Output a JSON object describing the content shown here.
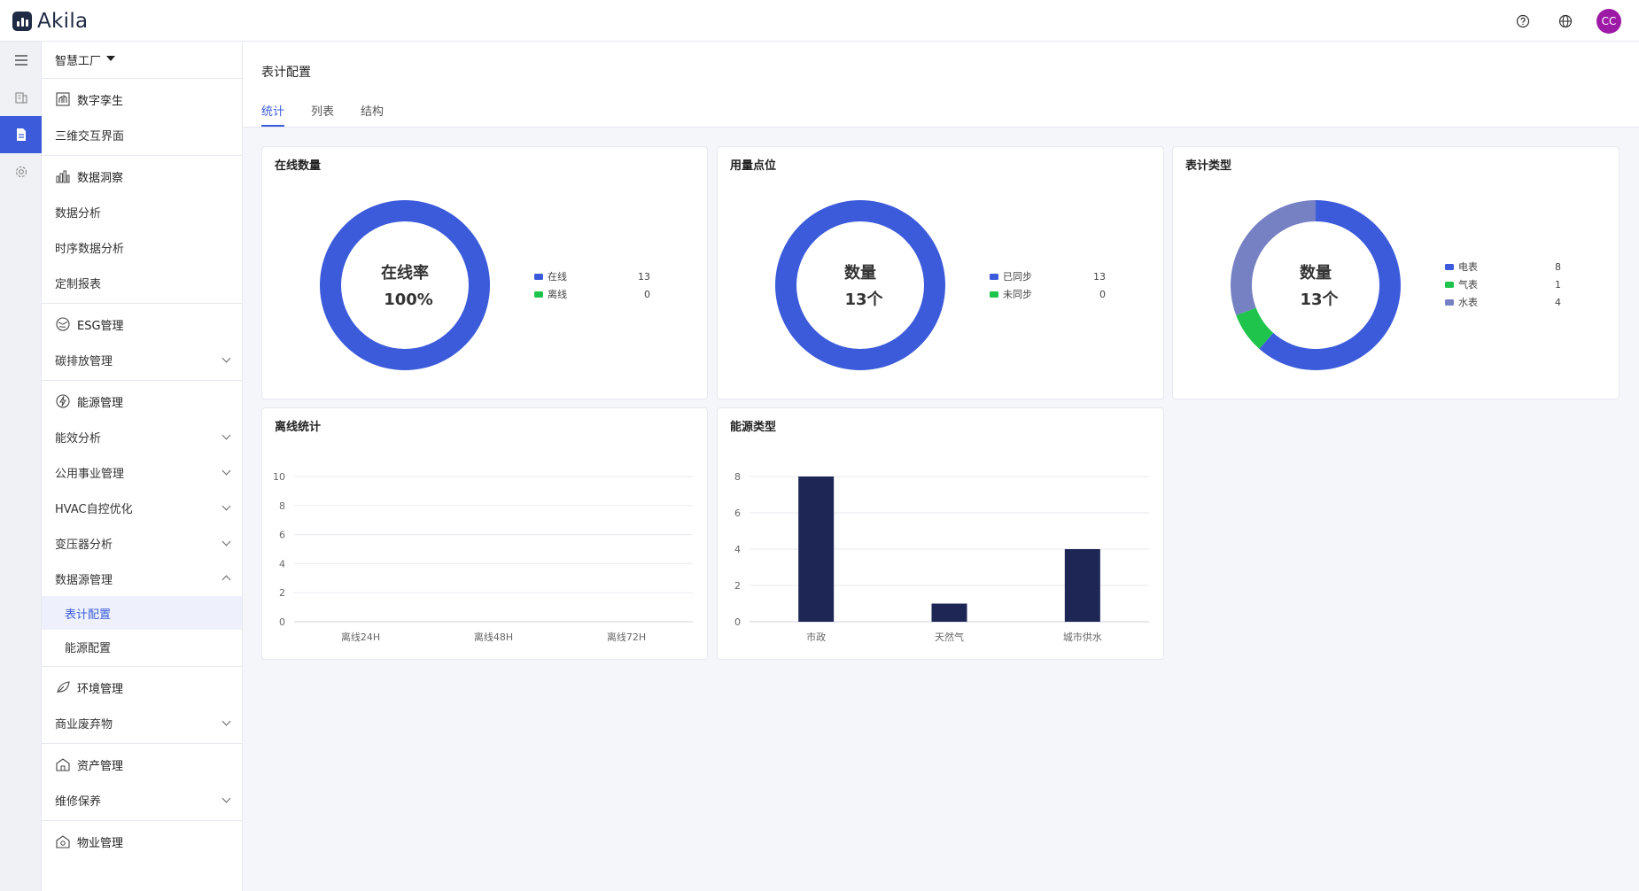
{
  "app": {
    "name": "Akila"
  },
  "header": {
    "avatar_initials": "CC",
    "icons": [
      "help-icon",
      "globe-icon"
    ]
  },
  "sidebar": {
    "site": "智慧工厂",
    "groups": [
      {
        "icon": "digital-twin-icon",
        "title": "数字孪生",
        "items": [
          {
            "label": "三维交互界面",
            "expandable": false
          }
        ]
      },
      {
        "icon": "bar-chart-icon",
        "title": "数据洞察",
        "items": [
          {
            "label": "数据分析",
            "expandable": false
          },
          {
            "label": "时序数据分析",
            "expandable": false
          },
          {
            "label": "定制报表",
            "expandable": false
          }
        ]
      },
      {
        "icon": "esg-icon",
        "title": "ESG管理",
        "items": [
          {
            "label": "碳排放管理",
            "expandable": true
          }
        ]
      },
      {
        "icon": "energy-icon",
        "title": "能源管理",
        "items": [
          {
            "label": "能效分析",
            "expandable": true
          },
          {
            "label": "公用事业管理",
            "expandable": true
          },
          {
            "label": "HVAC自控优化",
            "expandable": true
          },
          {
            "label": "变压器分析",
            "expandable": true
          },
          {
            "label": "数据源管理",
            "expandable": true,
            "expanded": true,
            "children": [
              "表计配置",
              "能源配置"
            ]
          }
        ]
      },
      {
        "icon": "leaf-icon",
        "title": "环境管理",
        "items": [
          {
            "label": "商业废弃物",
            "expandable": true
          }
        ]
      },
      {
        "icon": "asset-icon",
        "title": "资产管理",
        "items": [
          {
            "label": "维修保养",
            "expandable": true
          }
        ]
      },
      {
        "icon": "property-icon",
        "title": "物业管理",
        "items": []
      }
    ],
    "active_child": "表计配置"
  },
  "page": {
    "title": "表计配置",
    "tabs": [
      "统计",
      "列表",
      "结构"
    ],
    "active_tab": "统计"
  },
  "colors": {
    "blue": "#3b5bdb",
    "green": "#1ec44c",
    "slate": "#7681c4",
    "navy": "#1e2655"
  },
  "chart_data": [
    {
      "type": "pie",
      "title": "在线数量",
      "center_label": "在线率",
      "center_value": "100%",
      "slices": [
        {
          "name": "在线",
          "value": 13,
          "color": "#3b5bdb"
        },
        {
          "name": "离线",
          "value": 0,
          "color": "#1ec44c"
        }
      ]
    },
    {
      "type": "pie",
      "title": "用量点位",
      "center_label": "数量",
      "center_value": "13个",
      "slices": [
        {
          "name": "已同步",
          "value": 13,
          "color": "#3b5bdb"
        },
        {
          "name": "未同步",
          "value": 0,
          "color": "#1ec44c"
        }
      ]
    },
    {
      "type": "pie",
      "title": "表计类型",
      "center_label": "数量",
      "center_value": "13个",
      "slices": [
        {
          "name": "电表",
          "value": 8,
          "color": "#3b5bdb"
        },
        {
          "name": "气表",
          "value": 1,
          "color": "#1ec44c"
        },
        {
          "name": "水表",
          "value": 4,
          "color": "#7681c4"
        }
      ]
    },
    {
      "type": "bar",
      "title": "离线统计",
      "categories": [
        "离线24H",
        "离线48H",
        "离线72H"
      ],
      "values": [
        0,
        0,
        0
      ],
      "ylim": [
        0,
        10
      ],
      "yticks": [
        0,
        2,
        4,
        6,
        8,
        10
      ],
      "grid": true
    },
    {
      "type": "bar",
      "title": "能源类型",
      "categories": [
        "市政",
        "天然气",
        "城市供水"
      ],
      "values": [
        8,
        1,
        4
      ],
      "ylim": [
        0,
        8
      ],
      "yticks": [
        0,
        2,
        4,
        6,
        8
      ],
      "grid": true,
      "color": "#1e2655"
    }
  ]
}
